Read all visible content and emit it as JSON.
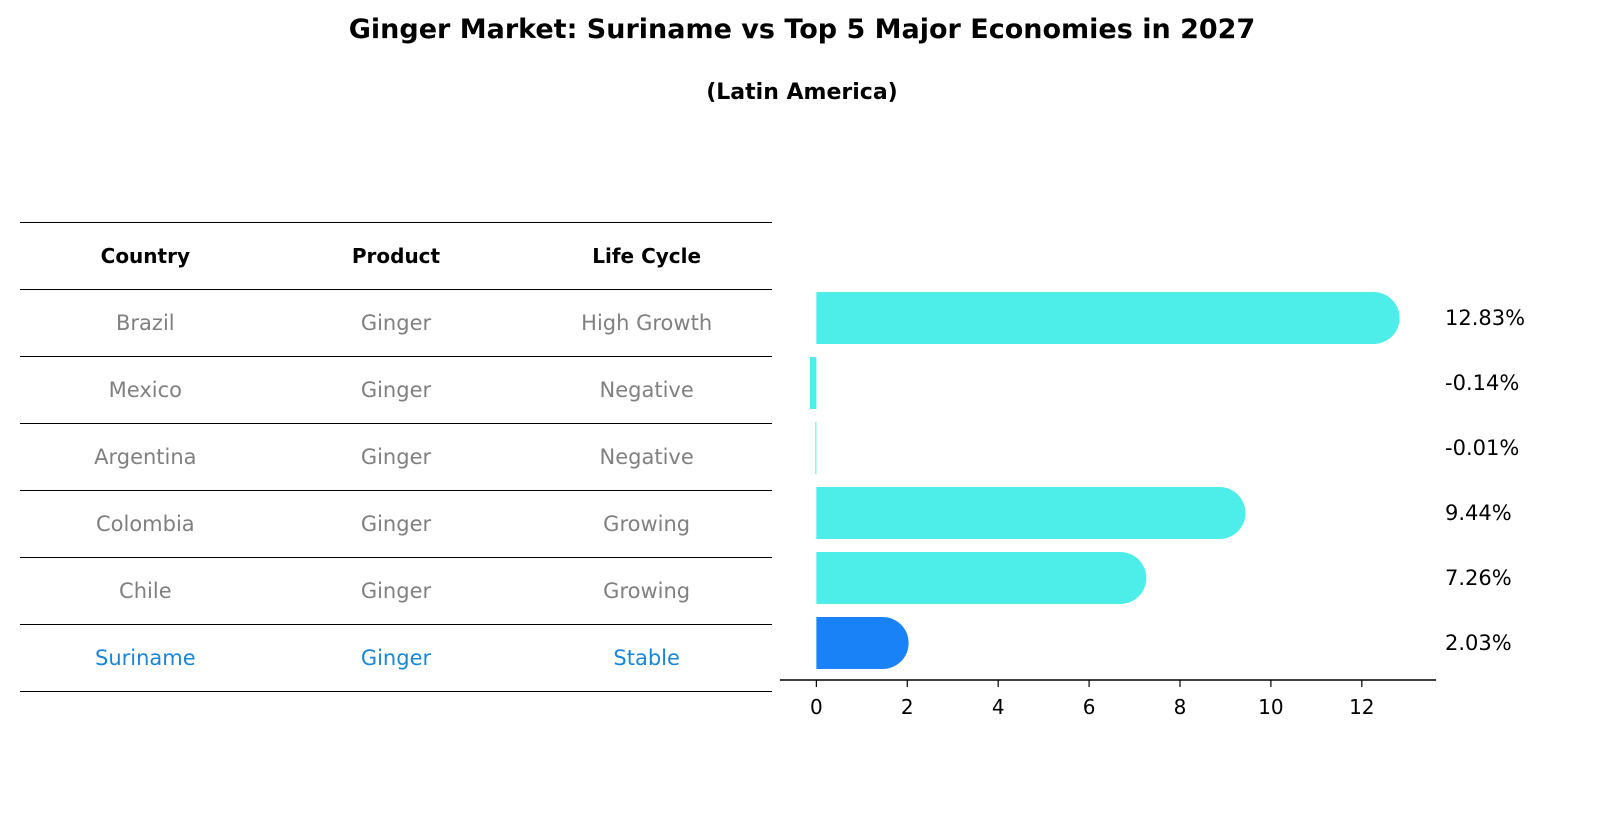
{
  "title": "Ginger Market: Suriname vs Top 5 Major Economies in 2027",
  "subtitle": "(Latin America)",
  "table": {
    "headers": [
      "Country",
      "Product",
      "Life Cycle"
    ],
    "rows": [
      {
        "country": "Brazil",
        "product": "Ginger",
        "life_cycle": "High Growth"
      },
      {
        "country": "Mexico",
        "product": "Ginger",
        "life_cycle": "Negative"
      },
      {
        "country": "Argentina",
        "product": "Ginger",
        "life_cycle": "Negative"
      },
      {
        "country": "Colombia",
        "product": "Ginger",
        "life_cycle": "Growing"
      },
      {
        "country": "Chile",
        "product": "Ginger",
        "life_cycle": "Growing"
      },
      {
        "country": "Suriname",
        "product": "Ginger",
        "life_cycle": "Stable"
      }
    ],
    "highlight_color": "#1a86d6",
    "text_color": "#808080"
  },
  "chart_data": {
    "type": "bar",
    "orientation": "horizontal",
    "categories": [
      "Brazil",
      "Mexico",
      "Argentina",
      "Colombia",
      "Chile",
      "Suriname"
    ],
    "values": [
      12.83,
      -0.14,
      -0.01,
      9.44,
      7.26,
      2.03
    ],
    "value_labels": [
      "12.83%",
      "-0.14%",
      "-0.01%",
      "9.44%",
      "7.26%",
      "2.03%"
    ],
    "highlight_category": "Suriname",
    "bar_color": "#4deeea",
    "highlight_color": "#1a82f7",
    "xlim": [
      -0.8,
      13.5
    ],
    "xticks": [
      0,
      2,
      4,
      6,
      8,
      10,
      12
    ],
    "grid": false
  }
}
